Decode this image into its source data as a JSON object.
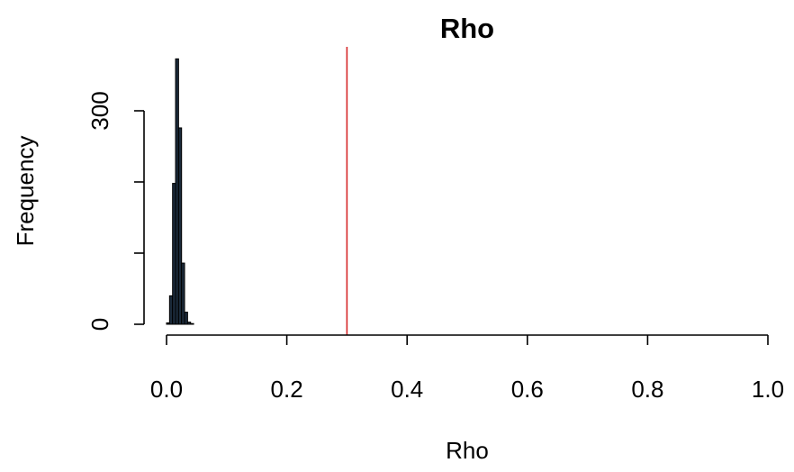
{
  "chart_data": {
    "type": "bar",
    "title": "Rho",
    "xlabel": "Rho",
    "ylabel": "Frequency",
    "xlim": [
      0,
      1
    ],
    "ylim": [
      0,
      400
    ],
    "x_ticks": [
      0,
      0.2,
      0.4,
      0.6,
      0.8,
      1.0
    ],
    "x_tick_labels": [
      "0.0",
      "0.2",
      "0.4",
      "0.6",
      "0.8",
      "1.0"
    ],
    "y_ticks": [
      0,
      100,
      200,
      300
    ],
    "y_tick_labels": [
      "0",
      "",
      "",
      "300"
    ],
    "grid": false,
    "bar_color": "#1b2a3a",
    "bins": [
      {
        "x0": 0.0,
        "x1": 0.005,
        "count": 2
      },
      {
        "x0": 0.005,
        "x1": 0.01,
        "count": 40
      },
      {
        "x0": 0.01,
        "x1": 0.015,
        "count": 198
      },
      {
        "x0": 0.015,
        "x1": 0.02,
        "count": 373
      },
      {
        "x0": 0.02,
        "x1": 0.025,
        "count": 276
      },
      {
        "x0": 0.025,
        "x1": 0.03,
        "count": 86
      },
      {
        "x0": 0.03,
        "x1": 0.035,
        "count": 17
      },
      {
        "x0": 0.035,
        "x1": 0.04,
        "count": 3
      },
      {
        "x0": 0.04,
        "x1": 0.045,
        "count": 1
      }
    ],
    "reference_line": {
      "x": 0.3,
      "color": "#d62728"
    }
  }
}
